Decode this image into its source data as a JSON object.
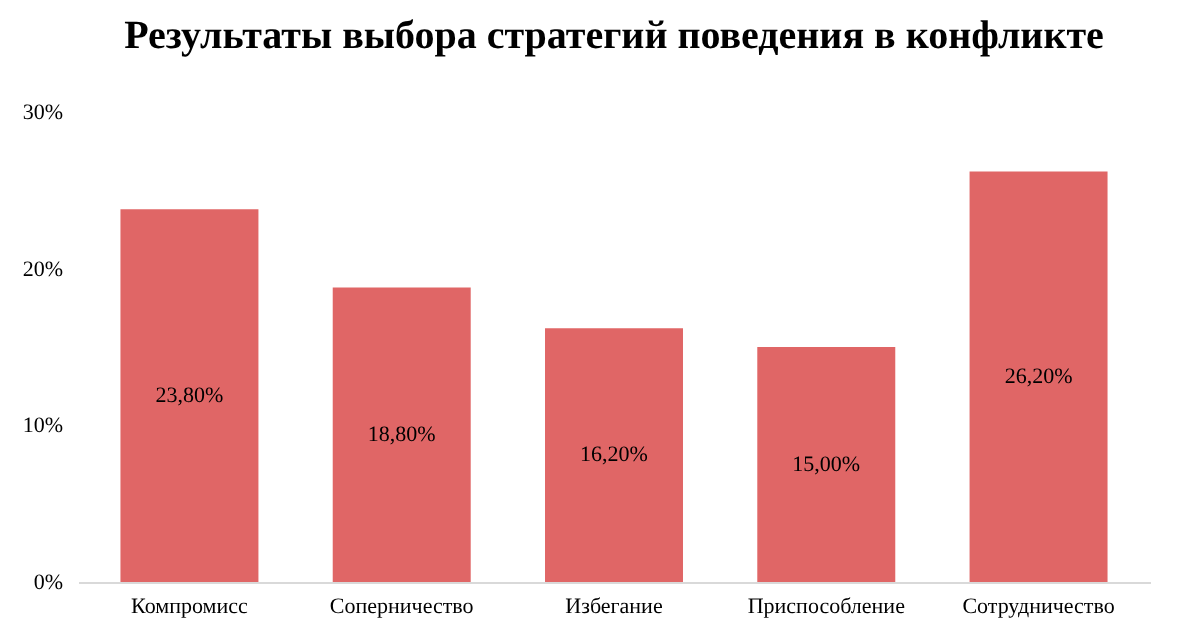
{
  "chart_data": {
    "type": "bar",
    "title": "Результаты выбора стратегий поведения в конфликте",
    "categories": [
      "Компромисс",
      "Соперничество",
      "Избегание",
      "Приспособление",
      "Сотрудничество"
    ],
    "values": [
      23.8,
      18.8,
      16.2,
      15.0,
      26.2
    ],
    "value_labels": [
      "23,80%",
      "18,80%",
      "16,20%",
      "15,00%",
      "26,20%"
    ],
    "color": "#e06666",
    "ylim": [
      0,
      30
    ],
    "yticks": [
      {
        "value": 0,
        "label": "0%"
      },
      {
        "value": 10,
        "label": "10%"
      },
      {
        "value": 20,
        "label": "20%"
      },
      {
        "value": 30,
        "label": "30%"
      }
    ]
  }
}
